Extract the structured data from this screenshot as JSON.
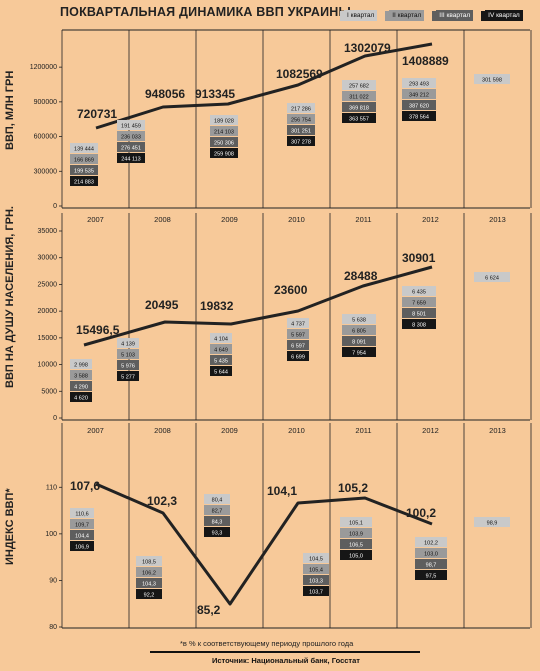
{
  "title": "ПОКВАРТАЛЬНАЯ ДИНАМИКА ВВП УКРАИНЫ",
  "legend": [
    {
      "label": "I квартал",
      "color": "#c9c9c9",
      "text_color": "#111111"
    },
    {
      "label": "II квартал",
      "color": "#9a9a9a",
      "text_color": "#111111"
    },
    {
      "label": "III квартал",
      "color": "#5e5e5e",
      "text_color": "#ffffff"
    },
    {
      "label": "IV квартал",
      "color": "#161616",
      "text_color": "#ffffff"
    }
  ],
  "colors": {
    "background": "#f7c999",
    "line": "#222222",
    "grid": "#222222"
  },
  "chart_data": [
    {
      "type": "bar",
      "ylabel": "ВВП, МЛН ГРН",
      "categories": [
        "2007",
        "2008",
        "2009",
        "2010",
        "2011",
        "2012",
        "2013"
      ],
      "ylim": [
        0,
        1400000
      ],
      "yticks": [
        "0",
        "300000",
        "600000",
        "900000",
        "1200000"
      ],
      "ytick_values": [
        0,
        300000,
        600000,
        900000,
        1200000
      ],
      "annual": [
        720731,
        948056,
        913345,
        1082569,
        1302079,
        1408889,
        null
      ],
      "annual_labels": [
        "720731",
        "948056",
        "913345",
        "1082569",
        "1302079",
        "1408889",
        ""
      ],
      "series": [
        {
          "name": "I квартал",
          "values": [
            139444,
            191459,
            189028,
            217286,
            257682,
            293493,
            301598
          ],
          "labels": [
            "139 444",
            "191 459",
            "189 028",
            "217 286",
            "257 682",
            "293 493",
            "301 598"
          ]
        },
        {
          "name": "II квартал",
          "values": [
            166869,
            236033,
            214103,
            256754,
            311022,
            349212,
            null
          ],
          "labels": [
            "166 869",
            "236 033",
            "214 103",
            "256 754",
            "311 022",
            "349 212",
            ""
          ]
        },
        {
          "name": "III квартал",
          "values": [
            199535,
            276451,
            250306,
            301251,
            369818,
            387620,
            null
          ],
          "labels": [
            "199 535",
            "276 451",
            "250 306",
            "301 251",
            "369 818",
            "387 620",
            ""
          ]
        },
        {
          "name": "IV квартал",
          "values": [
            214883,
            244113,
            259908,
            307278,
            363557,
            378564,
            null
          ],
          "labels": [
            "214 883",
            "244 113",
            "259 908",
            "307 278",
            "363 557",
            "378 564",
            ""
          ]
        }
      ]
    },
    {
      "type": "bar",
      "ylabel": "ВВП НА ДУШУ НАСЕЛЕНИЯ, ГРН.",
      "categories": [
        "2007",
        "2008",
        "2009",
        "2010",
        "2011",
        "2012",
        "2013"
      ],
      "ylim": [
        0,
        35000
      ],
      "yticks": [
        "0",
        "5000",
        "10000",
        "15000",
        "20000",
        "25000",
        "30000",
        "35000"
      ],
      "ytick_values": [
        0,
        5000,
        10000,
        15000,
        20000,
        25000,
        30000,
        35000
      ],
      "annual": [
        15496.5,
        20495,
        19832,
        23600,
        28488,
        30901,
        null
      ],
      "annual_labels": [
        "15496,5",
        "20495",
        "19832",
        "23600",
        "28488",
        "30901",
        ""
      ],
      "series": [
        {
          "name": "I квартал",
          "values": [
            2998,
            4139,
            4104,
            4737,
            5638,
            6435,
            6624
          ],
          "labels": [
            "2 998",
            "4 139",
            "4 104",
            "4 737",
            "5 638",
            "6 435",
            "6 624"
          ]
        },
        {
          "name": "II квартал",
          "values": [
            3588,
            5103,
            4649,
            5597,
            6805,
            7659,
            null
          ],
          "labels": [
            "3 588",
            "5 103",
            "4 649",
            "5 597",
            "6 805",
            "7 659",
            ""
          ]
        },
        {
          "name": "III квартал",
          "values": [
            4290,
            5976,
            5435,
            6597,
            8091,
            8501,
            null
          ],
          "labels": [
            "4 290",
            "5 976",
            "5 435",
            "6 597",
            "8 091",
            "8 501",
            ""
          ]
        },
        {
          "name": "IV квартал",
          "values": [
            4620,
            5277,
            5644,
            6699,
            7954,
            8308,
            null
          ],
          "labels": [
            "4 620",
            "5 277",
            "5 644",
            "6 699",
            "7 954",
            "8 308",
            ""
          ]
        }
      ]
    },
    {
      "type": "bar",
      "ylabel": "ИНДЕКС ВВП*",
      "categories": [
        "2007",
        "2008",
        "2009",
        "2010",
        "2011",
        "2012",
        "2013"
      ],
      "ylim": [
        80,
        115
      ],
      "yticks": [
        "80",
        "90",
        "100",
        "110"
      ],
      "ytick_values": [
        80,
        90,
        100,
        110
      ],
      "annual": [
        107.6,
        102.3,
        85.2,
        104.1,
        105.2,
        100.2,
        null
      ],
      "annual_labels": [
        "107,6",
        "102,3",
        "85,2",
        "104,1",
        "105,2",
        "100,2",
        ""
      ],
      "series": [
        {
          "name": "I квартал",
          "values": [
            110.6,
            108.5,
            80.4,
            104.5,
            105.1,
            102.2,
            98.9
          ],
          "labels": [
            "110,6",
            "108,5",
            "80,4",
            "104,5",
            "105,1",
            "102,2",
            "98,9"
          ]
        },
        {
          "name": "II квартал",
          "values": [
            109.7,
            106.2,
            82.7,
            105.4,
            103.9,
            103.0,
            null
          ],
          "labels": [
            "109,7",
            "106,2",
            "82,7",
            "105,4",
            "103,9",
            "103,0",
            ""
          ]
        },
        {
          "name": "III квартал",
          "values": [
            104.4,
            104.3,
            84.3,
            103.3,
            106.5,
            98.7,
            null
          ],
          "labels": [
            "104,4",
            "104,3",
            "84,3",
            "103,3",
            "106,5",
            "98,7",
            ""
          ]
        },
        {
          "name": "IV квартал",
          "values": [
            106.9,
            92.2,
            93.3,
            103.7,
            105.0,
            97.5,
            null
          ],
          "labels": [
            "106,9",
            "92,2",
            "93,3",
            "103,7",
            "105,0",
            "97,5",
            ""
          ]
        }
      ]
    }
  ],
  "footnote": "*в % к соответствующему периоду прошлого года",
  "source": "Источник: Национальный банк, Госстат"
}
